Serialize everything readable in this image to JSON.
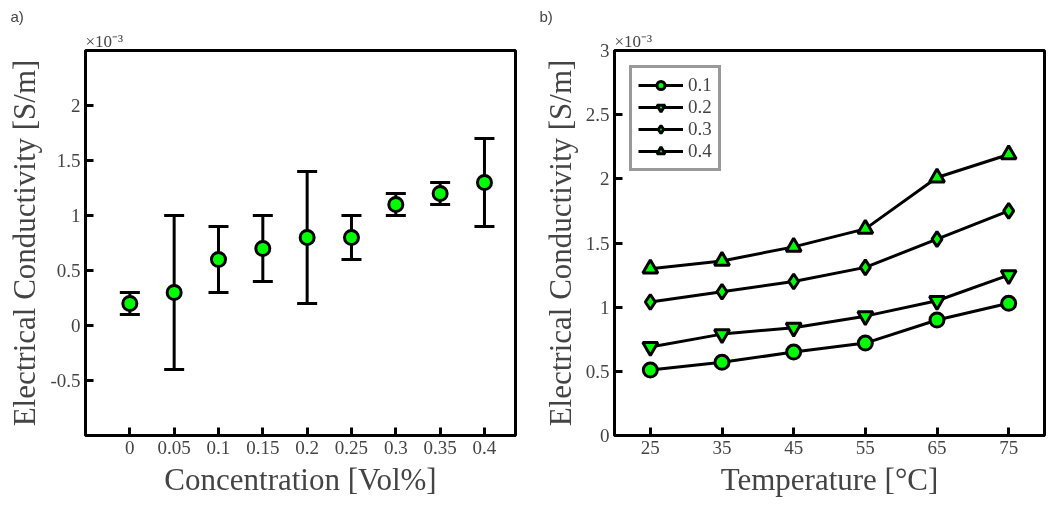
{
  "chart_data": [
    {
      "type": "scatter",
      "annotations": [
        "a)",
        "×10⁻³"
      ],
      "xlabel": "Concentration [Vol%]",
      "ylabel": "Electrical Conductivity [S/m]",
      "x": [
        0,
        0.05,
        0.1,
        0.15,
        0.2,
        0.25,
        0.3,
        0.35,
        0.4
      ],
      "values": [
        0.2,
        0.3,
        0.6,
        0.7,
        0.8,
        0.8,
        1.1,
        1.2,
        1.3
      ],
      "errors": [
        [
          0.1,
          0.3
        ],
        [
          -0.4,
          1.0
        ],
        [
          0.3,
          0.9
        ],
        [
          0.4,
          1.0
        ],
        [
          0.2,
          1.4
        ],
        [
          0.6,
          1.0
        ],
        [
          1.0,
          1.2
        ],
        [
          1.1,
          1.3
        ],
        [
          0.9,
          1.7
        ]
      ],
      "color": "#00ff00",
      "marker": "circle",
      "xlim": [
        -0.05,
        0.435
      ],
      "ylim": [
        -1,
        2.5
      ],
      "xticks": [
        0,
        0.05,
        0.1,
        0.15,
        0.2,
        0.25,
        0.3,
        0.35,
        0.4
      ],
      "yticks": [
        -0.5,
        0,
        0.5,
        1,
        1.5,
        2
      ],
      "grid": false
    },
    {
      "type": "line",
      "annotations": [
        "b)",
        "×10⁻³"
      ],
      "xlabel": "Temperature [°C]",
      "ylabel": "Electrical Conductivity [S/m]",
      "x": [
        25,
        35,
        45,
        55,
        65,
        75
      ],
      "series": [
        {
          "name": "0.1",
          "color": "#00ff00",
          "marker": "circle",
          "values": [
            0.51,
            0.57,
            0.65,
            0.72,
            0.9,
            1.03
          ]
        },
        {
          "name": "0.2",
          "color": "#00ff00",
          "marker": "triangle_down",
          "values": [
            0.69,
            0.79,
            0.84,
            0.93,
            1.05,
            1.25
          ]
        },
        {
          "name": "0.3",
          "color": "#00ff00",
          "marker": "diamond",
          "values": [
            1.04,
            1.12,
            1.2,
            1.31,
            1.53,
            1.75
          ]
        },
        {
          "name": "0.4",
          "color": "#00ff00",
          "marker": "triangle",
          "values": [
            1.3,
            1.36,
            1.47,
            1.61,
            2.01,
            2.19
          ]
        }
      ],
      "xlim": [
        20,
        80
      ],
      "ylim": [
        0,
        3
      ],
      "xticks": [
        25,
        35,
        45,
        55,
        65,
        75
      ],
      "yticks": [
        0,
        0.5,
        1,
        1.5,
        2,
        2.5,
        3
      ],
      "grid": false,
      "legend": "top left",
      "line_style": "solid"
    }
  ]
}
